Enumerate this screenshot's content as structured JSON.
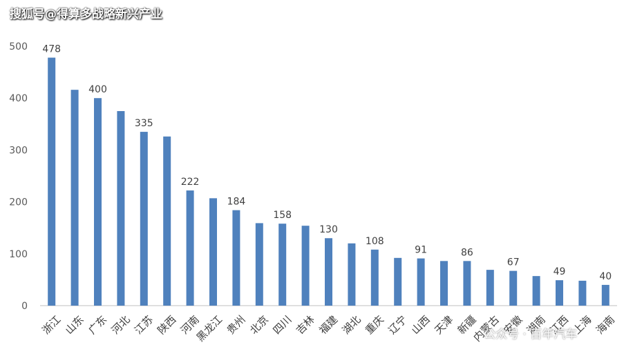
{
  "watermark": {
    "top": "搜狐号@得算多战略新兴产业",
    "bottom": "公众号 · 百年汽车"
  },
  "colors": {
    "bar": "#4f81bd",
    "axis": "#bfbfbf"
  },
  "chart_data": {
    "type": "bar",
    "title": "",
    "xlabel": "",
    "ylabel": "",
    "ylim": [
      0,
      500
    ],
    "yticks": [
      0,
      100,
      200,
      300,
      400,
      500
    ],
    "grid": false,
    "categories": [
      "浙江",
      "山东",
      "广东",
      "河北",
      "江苏",
      "陕西",
      "河南",
      "黑龙江",
      "贵州",
      "北京",
      "四川",
      "吉林",
      "福建",
      "湖北",
      "重庆",
      "辽宁",
      "山西",
      "天津",
      "新疆",
      "内蒙古",
      "安徽",
      "湖南",
      "江西",
      "上海",
      "海南"
    ],
    "values": [
      478,
      416,
      400,
      375,
      335,
      326,
      222,
      207,
      184,
      159,
      158,
      154,
      130,
      120,
      108,
      92,
      91,
      86,
      86,
      69,
      67,
      57,
      49,
      48,
      40
    ],
    "data_labels": [
      478,
      null,
      400,
      null,
      335,
      null,
      222,
      null,
      184,
      null,
      158,
      null,
      130,
      null,
      108,
      null,
      91,
      null,
      86,
      null,
      67,
      null,
      49,
      null,
      40
    ]
  }
}
